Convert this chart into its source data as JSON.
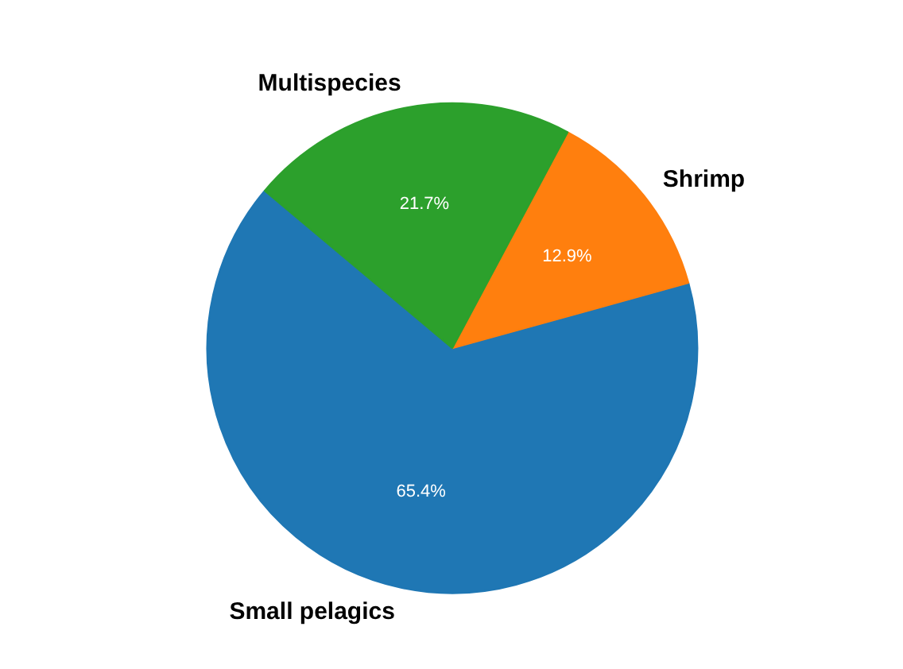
{
  "chart_data": {
    "type": "pie",
    "categories": [
      "Small pelagics",
      "Shrimp",
      "Multispecies"
    ],
    "values": [
      65.4,
      12.9,
      21.7
    ],
    "colors": [
      "#1f77b4",
      "#ff7f0e",
      "#2ca02c"
    ],
    "value_labels": [
      "65.4%",
      "12.9%",
      "21.7%"
    ],
    "legend": false
  }
}
